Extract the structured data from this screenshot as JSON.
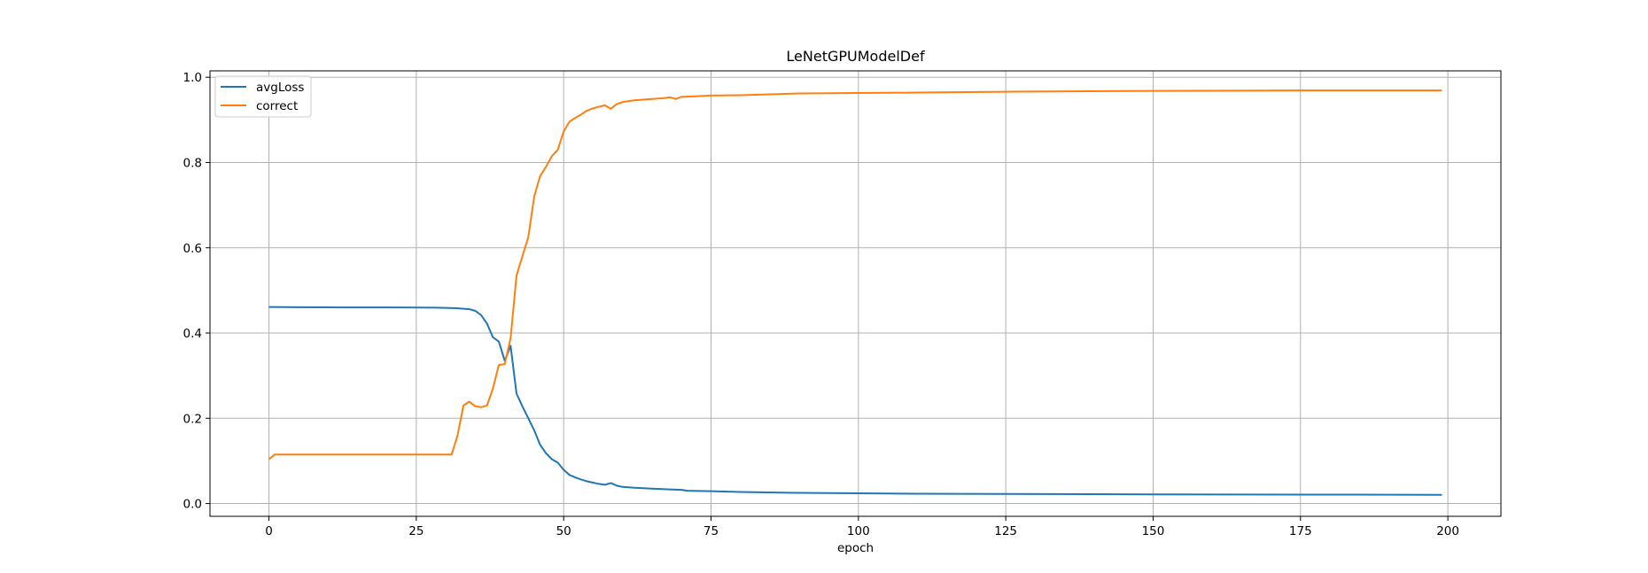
{
  "chart_data": {
    "type": "line",
    "title": "LeNetGPUModelDef",
    "xlabel": "epoch",
    "ylabel": "",
    "xlim": [
      -10,
      209
    ],
    "ylim": [
      -0.03,
      1.015
    ],
    "x_ticks": [
      0,
      25,
      50,
      75,
      100,
      125,
      150,
      175,
      200
    ],
    "y_ticks": [
      0.0,
      0.2,
      0.4,
      0.6,
      0.8,
      1.0
    ],
    "grid": true,
    "legend_position": "top-left",
    "series": [
      {
        "name": "avgLoss",
        "color": "#1f77b4",
        "points": [
          [
            0,
            0.461
          ],
          [
            5,
            0.4605
          ],
          [
            10,
            0.4602
          ],
          [
            15,
            0.46
          ],
          [
            20,
            0.46
          ],
          [
            25,
            0.4598
          ],
          [
            28,
            0.4595
          ],
          [
            30,
            0.459
          ],
          [
            32,
            0.458
          ],
          [
            33,
            0.457
          ],
          [
            34,
            0.456
          ],
          [
            35,
            0.452
          ],
          [
            36,
            0.442
          ],
          [
            37,
            0.422
          ],
          [
            38,
            0.39
          ],
          [
            39,
            0.38
          ],
          [
            40,
            0.335
          ],
          [
            41,
            0.37
          ],
          [
            42,
            0.258
          ],
          [
            43,
            0.228
          ],
          [
            44,
            0.2
          ],
          [
            45,
            0.172
          ],
          [
            46,
            0.138
          ],
          [
            47,
            0.118
          ],
          [
            48,
            0.104
          ],
          [
            49,
            0.096
          ],
          [
            50,
            0.079
          ],
          [
            51,
            0.067
          ],
          [
            52,
            0.061
          ],
          [
            53,
            0.056
          ],
          [
            54,
            0.052
          ],
          [
            55,
            0.049
          ],
          [
            56,
            0.046
          ],
          [
            57,
            0.044
          ],
          [
            58,
            0.048
          ],
          [
            59,
            0.042
          ],
          [
            60,
            0.039
          ],
          [
            62,
            0.037
          ],
          [
            65,
            0.035
          ],
          [
            68,
            0.033
          ],
          [
            70,
            0.032
          ],
          [
            71,
            0.03
          ],
          [
            75,
            0.029
          ],
          [
            80,
            0.027
          ],
          [
            90,
            0.025
          ],
          [
            100,
            0.024
          ],
          [
            110,
            0.023
          ],
          [
            125,
            0.0225
          ],
          [
            150,
            0.0215
          ],
          [
            175,
            0.021
          ],
          [
            199,
            0.0205
          ]
        ]
      },
      {
        "name": "correct",
        "color": "#ff7f0e",
        "points": [
          [
            0,
            0.104
          ],
          [
            1,
            0.115
          ],
          [
            5,
            0.115
          ],
          [
            10,
            0.115
          ],
          [
            15,
            0.115
          ],
          [
            20,
            0.115
          ],
          [
            25,
            0.115
          ],
          [
            30,
            0.115
          ],
          [
            31,
            0.115
          ],
          [
            32,
            0.16
          ],
          [
            33,
            0.23
          ],
          [
            34,
            0.239
          ],
          [
            35,
            0.228
          ],
          [
            36,
            0.226
          ],
          [
            37,
            0.23
          ],
          [
            38,
            0.27
          ],
          [
            39,
            0.325
          ],
          [
            40,
            0.327
          ],
          [
            41,
            0.388
          ],
          [
            42,
            0.535
          ],
          [
            43,
            0.58
          ],
          [
            44,
            0.625
          ],
          [
            45,
            0.72
          ],
          [
            46,
            0.768
          ],
          [
            47,
            0.79
          ],
          [
            48,
            0.815
          ],
          [
            49,
            0.83
          ],
          [
            50,
            0.873
          ],
          [
            51,
            0.896
          ],
          [
            52,
            0.905
          ],
          [
            53,
            0.913
          ],
          [
            54,
            0.922
          ],
          [
            55,
            0.927
          ],
          [
            56,
            0.931
          ],
          [
            57,
            0.934
          ],
          [
            58,
            0.926
          ],
          [
            59,
            0.937
          ],
          [
            60,
            0.942
          ],
          [
            62,
            0.946
          ],
          [
            65,
            0.949
          ],
          [
            67,
            0.951
          ],
          [
            68,
            0.953
          ],
          [
            69,
            0.949
          ],
          [
            70,
            0.954
          ],
          [
            72,
            0.955
          ],
          [
            75,
            0.957
          ],
          [
            80,
            0.958
          ],
          [
            85,
            0.96
          ],
          [
            90,
            0.962
          ],
          [
            100,
            0.963
          ],
          [
            110,
            0.964
          ],
          [
            125,
            0.966
          ],
          [
            150,
            0.968
          ],
          [
            175,
            0.969
          ],
          [
            199,
            0.969
          ]
        ]
      }
    ]
  }
}
